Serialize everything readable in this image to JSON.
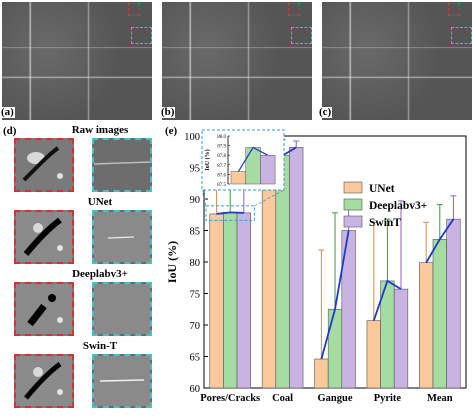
{
  "panels": {
    "a": "(a)",
    "b": "(b)",
    "c": "(c)",
    "d": "(d)",
    "e": "(e)"
  },
  "crops": {
    "titles": [
      "Raw images",
      "UNet",
      "Deeplabv3+",
      "Swin-T"
    ]
  },
  "colors": {
    "unet": "#f9c89b",
    "deeplab": "#a6dba2",
    "swint": "#c8b3e3",
    "unet_err": "#d98a4a",
    "deeplab_err": "#3a9a3a",
    "swint_err": "#8a64c0",
    "trend": "#1a3ccc",
    "inset_box": "#3a9ad6"
  },
  "chart_data": {
    "type": "bar",
    "categories": [
      "Pores/Cracks",
      "Coal",
      "Gangue",
      "Pyrite",
      "Mean"
    ],
    "ylabel": "IoU (%)",
    "ylim": [
      60,
      100
    ],
    "yticks": [
      60,
      65,
      70,
      75,
      80,
      85,
      90,
      95,
      100
    ],
    "legend": "top-right",
    "series": [
      {
        "name": "UNet",
        "values": [
          87.63,
          96.7,
          64.6,
          70.7,
          79.9
        ],
        "err_high": [
          93.7,
          99.4,
          81.9,
          86.3,
          86.3
        ]
      },
      {
        "name": "Deeplabv3+",
        "values": [
          87.88,
          96.9,
          72.5,
          77.0,
          83.6
        ],
        "err_high": [
          94.1,
          99.4,
          87.8,
          86.8,
          89.1
        ]
      },
      {
        "name": "SwinT",
        "values": [
          87.8,
          98.2,
          85.0,
          75.7,
          86.8
        ],
        "err_high": [
          94.6,
          99.2,
          88.8,
          89.7,
          90.5
        ]
      }
    ],
    "inset": {
      "ylabel": "IoU (%)",
      "ylim": [
        87.5,
        88.0
      ],
      "yticks": [
        "87.5",
        "87.6",
        "87.7",
        "87.8",
        "87.9",
        "88.0"
      ],
      "values": [
        87.63,
        87.88,
        87.8
      ]
    }
  }
}
